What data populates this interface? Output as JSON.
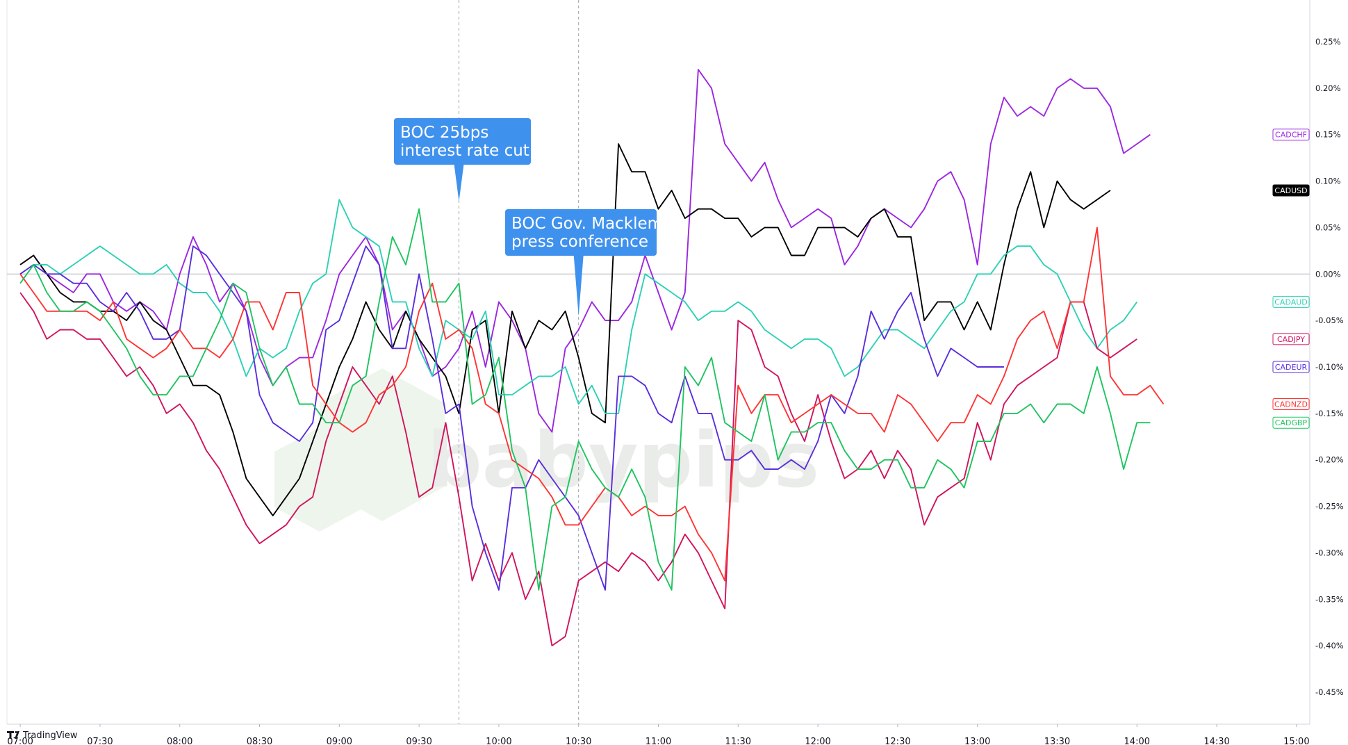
{
  "brand": {
    "name": "TradingView",
    "watermark": "babypips"
  },
  "annotations": [
    {
      "id": "rate-cut",
      "lines": [
        "BOC 25bps",
        "interest rate cut"
      ],
      "time": "09:45"
    },
    {
      "id": "press-conf",
      "lines": [
        "BOC Gov. Macklem",
        "press conference"
      ],
      "time": "10:30"
    }
  ],
  "chart_data": {
    "type": "line",
    "x_ticks": [
      "07:00",
      "07:30",
      "08:00",
      "08:30",
      "09:00",
      "09:30",
      "10:00",
      "10:30",
      "11:00",
      "11:30",
      "12:00",
      "12:30",
      "13:00",
      "13:30",
      "14:00",
      "14:30",
      "15:00"
    ],
    "x_range": [
      "06:55",
      "15:05"
    ],
    "x_step_minutes": 5,
    "y_ticks": [
      "0.25%",
      "0.20%",
      "0.15%",
      "0.10%",
      "0.05%",
      "0.00%",
      "-0.05%",
      "-0.10%",
      "-0.15%",
      "-0.20%",
      "-0.25%",
      "-0.30%",
      "-0.35%",
      "-0.40%",
      "-0.45%"
    ],
    "ylim": [
      -0.46,
      0.29
    ],
    "ylabel": "",
    "grid": false,
    "zero_line": true,
    "series": [
      {
        "name": "CADCHF",
        "color": "#9c27e0",
        "values": [
          0.01,
          0.02,
          0.0,
          -0.01,
          -0.02,
          0.0,
          0.0,
          -0.03,
          -0.04,
          -0.03,
          -0.04,
          -0.06,
          0.0,
          0.04,
          0.01,
          -0.03,
          -0.01,
          -0.04,
          -0.09,
          -0.12,
          -0.1,
          -0.09,
          -0.09,
          -0.05,
          0.0,
          0.02,
          0.04,
          0.01,
          -0.06,
          -0.04,
          -0.07,
          -0.11,
          -0.1,
          -0.08,
          -0.04,
          -0.1,
          -0.03,
          -0.05,
          -0.08,
          -0.15,
          -0.17,
          -0.08,
          -0.06,
          -0.03,
          -0.05,
          -0.05,
          -0.03,
          0.02,
          -0.02,
          -0.06,
          -0.02,
          0.22,
          0.2,
          0.14,
          0.12,
          0.1,
          0.12,
          0.08,
          0.05,
          0.06,
          0.07,
          0.06,
          0.01,
          0.03,
          0.06,
          0.07,
          0.06,
          0.05,
          0.07,
          0.1,
          0.11,
          0.08,
          0.01,
          0.14,
          0.19,
          0.17,
          0.18,
          0.17,
          0.2,
          0.21,
          0.2,
          0.2,
          0.18,
          0.13,
          0.14,
          0.15
        ]
      },
      {
        "name": "CADUSD",
        "color": "#000000",
        "values": [
          0.01,
          0.02,
          0.0,
          -0.02,
          -0.03,
          -0.03,
          -0.04,
          -0.04,
          -0.05,
          -0.03,
          -0.05,
          -0.06,
          -0.09,
          -0.12,
          -0.12,
          -0.13,
          -0.17,
          -0.22,
          -0.24,
          -0.26,
          -0.24,
          -0.22,
          -0.18,
          -0.14,
          -0.1,
          -0.07,
          -0.03,
          -0.06,
          -0.08,
          -0.04,
          -0.07,
          -0.09,
          -0.11,
          -0.15,
          -0.06,
          -0.05,
          -0.15,
          -0.04,
          -0.08,
          -0.05,
          -0.06,
          -0.04,
          -0.09,
          -0.15,
          -0.16,
          0.14,
          0.11,
          0.11,
          0.07,
          0.09,
          0.06,
          0.07,
          0.07,
          0.06,
          0.06,
          0.04,
          0.05,
          0.05,
          0.02,
          0.02,
          0.05,
          0.05,
          0.05,
          0.04,
          0.06,
          0.07,
          0.04,
          0.04,
          -0.05,
          -0.03,
          -0.03,
          -0.06,
          -0.03,
          -0.06,
          0.01,
          0.07,
          0.11,
          0.05,
          0.1,
          0.08,
          0.07,
          0.08,
          0.09
        ]
      },
      {
        "name": "CADAUD",
        "color": "#2dd1b6",
        "values": [
          0.0,
          0.01,
          0.01,
          0.0,
          0.01,
          0.02,
          0.03,
          0.02,
          0.01,
          0.0,
          0.0,
          0.01,
          -0.01,
          -0.02,
          -0.02,
          -0.04,
          -0.07,
          -0.11,
          -0.08,
          -0.09,
          -0.08,
          -0.04,
          -0.01,
          0.0,
          0.08,
          0.05,
          0.04,
          0.03,
          -0.03,
          -0.03,
          -0.08,
          -0.11,
          -0.05,
          -0.06,
          -0.07,
          -0.04,
          -0.13,
          -0.13,
          -0.12,
          -0.11,
          -0.11,
          -0.1,
          -0.14,
          -0.12,
          -0.15,
          -0.15,
          -0.06,
          0.0,
          -0.01,
          -0.02,
          -0.03,
          -0.05,
          -0.04,
          -0.04,
          -0.03,
          -0.04,
          -0.06,
          -0.07,
          -0.08,
          -0.07,
          -0.07,
          -0.08,
          -0.11,
          -0.1,
          -0.08,
          -0.06,
          -0.06,
          -0.07,
          -0.08,
          -0.06,
          -0.04,
          -0.03,
          0.0,
          0.0,
          0.02,
          0.03,
          0.03,
          0.01,
          0.0,
          -0.03,
          -0.06,
          -0.08,
          -0.06,
          -0.05,
          -0.03
        ]
      },
      {
        "name": "CADJPY",
        "color": "#d0145d",
        "values": [
          -0.02,
          -0.04,
          -0.07,
          -0.06,
          -0.06,
          -0.07,
          -0.07,
          -0.09,
          -0.11,
          -0.1,
          -0.12,
          -0.15,
          -0.14,
          -0.16,
          -0.19,
          -0.21,
          -0.24,
          -0.27,
          -0.29,
          -0.28,
          -0.27,
          -0.25,
          -0.24,
          -0.18,
          -0.14,
          -0.1,
          -0.12,
          -0.14,
          -0.11,
          -0.17,
          -0.24,
          -0.23,
          -0.16,
          -0.24,
          -0.33,
          -0.29,
          -0.33,
          -0.3,
          -0.35,
          -0.32,
          -0.4,
          -0.39,
          -0.33,
          -0.32,
          -0.31,
          -0.32,
          -0.3,
          -0.31,
          -0.33,
          -0.31,
          -0.28,
          -0.3,
          -0.33,
          -0.36,
          -0.05,
          -0.06,
          -0.1,
          -0.11,
          -0.15,
          -0.18,
          -0.13,
          -0.18,
          -0.22,
          -0.21,
          -0.19,
          -0.22,
          -0.19,
          -0.21,
          -0.27,
          -0.24,
          -0.23,
          -0.22,
          -0.16,
          -0.2,
          -0.14,
          -0.12,
          -0.11,
          -0.1,
          -0.09,
          -0.03,
          -0.03,
          -0.08,
          -0.09,
          -0.08,
          -0.07
        ]
      },
      {
        "name": "CADEUR",
        "color": "#5a2fdc",
        "values": [
          0.0,
          0.01,
          0.0,
          0.0,
          -0.01,
          -0.01,
          -0.03,
          -0.04,
          -0.02,
          -0.04,
          -0.07,
          -0.07,
          -0.06,
          0.03,
          0.02,
          0.0,
          -0.02,
          -0.04,
          -0.13,
          -0.16,
          -0.17,
          -0.18,
          -0.16,
          -0.06,
          -0.05,
          -0.01,
          0.03,
          0.01,
          -0.08,
          -0.08,
          0.0,
          -0.07,
          -0.15,
          -0.14,
          -0.25,
          -0.3,
          -0.34,
          -0.23,
          -0.23,
          -0.2,
          -0.22,
          -0.24,
          -0.26,
          -0.3,
          -0.34,
          -0.11,
          -0.11,
          -0.12,
          -0.15,
          -0.16,
          -0.11,
          -0.15,
          -0.15,
          -0.2,
          -0.2,
          -0.19,
          -0.21,
          -0.21,
          -0.2,
          -0.21,
          -0.18,
          -0.13,
          -0.15,
          -0.11,
          -0.04,
          -0.07,
          -0.04,
          -0.02,
          -0.07,
          -0.11,
          -0.08,
          -0.09,
          -0.1,
          -0.1,
          -0.1
        ]
      },
      {
        "name": "CADNZD",
        "color": "#ff3434",
        "values": [
          0.0,
          -0.02,
          -0.04,
          -0.04,
          -0.04,
          -0.04,
          -0.05,
          -0.03,
          -0.07,
          -0.08,
          -0.09,
          -0.08,
          -0.06,
          -0.08,
          -0.08,
          -0.09,
          -0.07,
          -0.03,
          -0.03,
          -0.06,
          -0.02,
          -0.02,
          -0.12,
          -0.14,
          -0.16,
          -0.17,
          -0.16,
          -0.13,
          -0.12,
          -0.1,
          -0.04,
          -0.01,
          -0.07,
          -0.06,
          -0.08,
          -0.14,
          -0.15,
          -0.2,
          -0.21,
          -0.22,
          -0.24,
          -0.27,
          -0.27,
          -0.25,
          -0.23,
          -0.24,
          -0.26,
          -0.25,
          -0.26,
          -0.26,
          -0.25,
          -0.28,
          -0.3,
          -0.33,
          -0.12,
          -0.15,
          -0.13,
          -0.13,
          -0.16,
          -0.15,
          -0.14,
          -0.13,
          -0.14,
          -0.15,
          -0.15,
          -0.17,
          -0.13,
          -0.14,
          -0.16,
          -0.18,
          -0.16,
          -0.16,
          -0.13,
          -0.14,
          -0.11,
          -0.07,
          -0.05,
          -0.04,
          -0.08,
          -0.03,
          -0.03,
          0.05,
          -0.11,
          -0.13,
          -0.13,
          -0.12,
          -0.14
        ]
      },
      {
        "name": "CADGBP",
        "color": "#1fc460",
        "values": [
          -0.01,
          0.01,
          -0.02,
          -0.04,
          -0.04,
          -0.03,
          -0.04,
          -0.06,
          -0.08,
          -0.11,
          -0.13,
          -0.13,
          -0.11,
          -0.11,
          -0.08,
          -0.05,
          -0.01,
          -0.02,
          -0.08,
          -0.12,
          -0.1,
          -0.14,
          -0.14,
          -0.16,
          -0.16,
          -0.12,
          -0.11,
          -0.03,
          0.04,
          0.01,
          0.07,
          -0.03,
          -0.03,
          -0.01,
          -0.14,
          -0.13,
          -0.09,
          -0.19,
          -0.23,
          -0.34,
          -0.25,
          -0.24,
          -0.18,
          -0.21,
          -0.23,
          -0.24,
          -0.21,
          -0.24,
          -0.31,
          -0.34,
          -0.1,
          -0.12,
          -0.09,
          -0.16,
          -0.17,
          -0.18,
          -0.13,
          -0.2,
          -0.17,
          -0.17,
          -0.16,
          -0.16,
          -0.19,
          -0.21,
          -0.21,
          -0.2,
          -0.2,
          -0.23,
          -0.23,
          -0.2,
          -0.21,
          -0.23,
          -0.18,
          -0.18,
          -0.15,
          -0.15,
          -0.14,
          -0.16,
          -0.14,
          -0.14,
          -0.15,
          -0.1,
          -0.15,
          -0.21,
          -0.16,
          -0.16
        ]
      }
    ]
  }
}
